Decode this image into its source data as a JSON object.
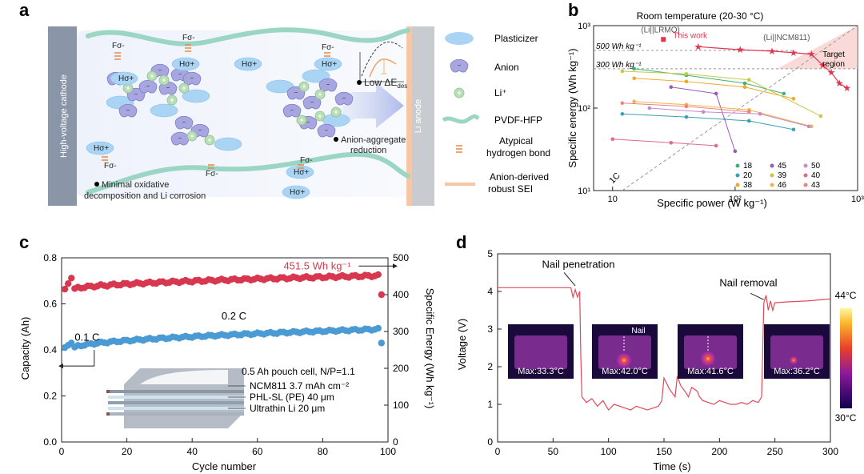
{
  "panels": {
    "a": {
      "letter": "a",
      "cathode_label": "High-voltage cathode",
      "anode_label": "Li anode",
      "annotations": {
        "minimal": "Minimal oxidative decomposition and Li corrosion",
        "anion_agg": "Anion-aggregate reduction",
        "low_e": "Low ΔE",
        "low_e_sub": "des"
      },
      "species_labels": {
        "h": "Hσ+",
        "f": "Fσ-"
      },
      "legend": [
        {
          "label": "Plasticizer",
          "icon": "ellipse-blue"
        },
        {
          "label": "Anion",
          "icon": "anion-purple"
        },
        {
          "label": "Li⁺",
          "icon": "li-green"
        },
        {
          "label": "PVDF-HFP",
          "icon": "wave-teal"
        },
        {
          "label": "Atypical hydrogen bond",
          "icon": "dash-orange"
        },
        {
          "label": "Anion-derived robust SEI",
          "icon": "line-orange"
        }
      ]
    },
    "b": {
      "letter": "b",
      "title": "Room temperature (20-30 °C)",
      "xlabel": "Specific power (W kg⁻¹)",
      "ylabel": "Specific energy  (Wh kg⁻¹)",
      "xticks": [
        "10",
        "10²",
        "10³"
      ],
      "yticks": [
        "10¹",
        "10²",
        "10³"
      ],
      "lines": {
        "e500": "500 Wh kg⁻¹",
        "e300": "300 Wh kg⁻¹",
        "rate": "1C"
      },
      "labels": {
        "lrmo": "(Li||LRMO)",
        "this_work": "This work",
        "ncm": "(Li||NCM811)",
        "target": "Target region"
      },
      "legend": [
        "18",
        "20",
        "38",
        "45",
        "39",
        "46",
        "50",
        "40",
        "43"
      ]
    },
    "c": {
      "letter": "c",
      "xlabel": "Cycle number",
      "ylabel_left": "Capacity (Ah)",
      "ylabel_right": "Specific Energy (Wh kg⁻¹)",
      "xticks": [
        "0",
        "20",
        "40",
        "60",
        "80",
        "100"
      ],
      "yticks_left": [
        "0.0",
        "0.2",
        "0.4",
        "0.6",
        "0.8"
      ],
      "yticks_right": [
        "0",
        "100",
        "200",
        "300",
        "400",
        "500"
      ],
      "annotations": {
        "energy": "451.5 Wh kg⁻¹",
        "rate01": "0.1 C",
        "rate02": "0.2 C",
        "cell": "0.5 Ah pouch cell, N/P=1.1",
        "ncm": "NCM811 3.7 mAh cm⁻²",
        "phl": "PHL-SL (PE) 40 μm",
        "li": "Ultrathin Li  20 μm"
      }
    },
    "d": {
      "letter": "d",
      "xlabel": "Time (s)",
      "ylabel": "Voltage (V)",
      "xticks": [
        "0",
        "50",
        "100",
        "150",
        "200",
        "250",
        "300"
      ],
      "yticks": [
        "0",
        "1",
        "2",
        "3",
        "4",
        "5"
      ],
      "annotations": {
        "pen": "Nail penetration",
        "rem": "Nail removal",
        "nail": "Nail"
      },
      "thermal": [
        "Max:33.3°C",
        "Max:42.0°C",
        "Max:41.6°C",
        "Max:36.2°C"
      ],
      "colorbar": {
        "max": "44°C",
        "min": "30°C"
      }
    }
  },
  "colors": {
    "red": "#d8384f",
    "blue": "#4a9ad4",
    "curve": "#e04a5a",
    "teal": "#9bd5c4"
  },
  "chart_data": [
    {
      "type": "scatter",
      "title": "Room temperature (20-30 °C)",
      "xlabel": "Specific power (W kg⁻¹)",
      "ylabel": "Specific energy  (Wh kg⁻¹)",
      "xscale": "log",
      "yscale": "log",
      "xlim": [
        7,
        1000
      ],
      "ylim": [
        10,
        1000
      ],
      "legend_position": "bottom-right",
      "series": [
        {
          "name": "This work",
          "color": "#e0354f",
          "x": [
            50,
            110,
            200,
            300,
            420,
            520,
            610,
            710,
            820
          ],
          "y": [
            555,
            510,
            490,
            470,
            450,
            330,
            270,
            200,
            175
          ]
        },
        {
          "name": "18",
          "color": "#3cb371",
          "x": [
            15,
            40,
            120,
            250
          ],
          "y": [
            300,
            250,
            200,
            150
          ]
        },
        {
          "name": "20",
          "color": "#3aa0b5",
          "x": [
            12,
            40,
            130,
            300
          ],
          "y": [
            85,
            78,
            70,
            55
          ]
        },
        {
          "name": "38",
          "color": "#f5a623",
          "x": [
            15,
            40,
            120,
            300
          ],
          "y": [
            230,
            210,
            180,
            130
          ]
        },
        {
          "name": "45",
          "color": "#9b59b6",
          "x": [
            30,
            70,
            100
          ],
          "y": [
            180,
            150,
            30
          ]
        },
        {
          "name": "39",
          "color": "#c8c848",
          "x": [
            12,
            40,
            130,
            500
          ],
          "y": [
            280,
            260,
            220,
            80
          ]
        },
        {
          "name": "46",
          "color": "#f2b24a",
          "x": [
            15,
            40,
            130,
            420
          ],
          "y": [
            120,
            110,
            95,
            60
          ]
        },
        {
          "name": "50",
          "color": "#c48ac9",
          "x": [
            20,
            55,
            160,
            400
          ],
          "y": [
            100,
            90,
            85,
            60
          ]
        },
        {
          "name": "40",
          "color": "#e06a8a",
          "x": [
            10,
            30,
            70
          ],
          "y": [
            42,
            38,
            35
          ]
        },
        {
          "name": "43",
          "color": "#f08080",
          "x": [
            12,
            40,
            130
          ],
          "y": [
            115,
            105,
            90
          ]
        }
      ],
      "points": {
        "lrmo": {
          "x": 26,
          "y": 680
        }
      }
    },
    {
      "type": "scatter",
      "xlabel": "Cycle number",
      "ylabel": "Capacity (Ah)",
      "y2label": "Specific Energy (Wh kg⁻¹)",
      "xlim": [
        0,
        100
      ],
      "ylim": [
        0,
        0.8
      ],
      "y2lim": [
        0,
        500
      ],
      "series": [
        {
          "name": "Specific energy",
          "axis": "right",
          "x_start": 1,
          "x_end": 98,
          "start": 415,
          "end": 451.5,
          "first": [
            415,
            430,
            445
          ],
          "last": 400
        },
        {
          "name": "Capacity",
          "axis": "left",
          "x_start": 1,
          "x_end": 98,
          "start": 0.41,
          "end": 0.49,
          "first": [
            0.41,
            0.42,
            0.43
          ],
          "last": 0.43
        }
      ]
    },
    {
      "type": "line",
      "xlabel": "Time (s)",
      "ylabel": "Voltage (V)",
      "xlim": [
        0,
        300
      ],
      "ylim": [
        0,
        5
      ],
      "series": [
        {
          "name": "Voltage",
          "x": [
            0,
            66,
            68,
            70,
            72,
            74,
            75,
            76,
            80,
            85,
            90,
            95,
            100,
            105,
            110,
            115,
            120,
            125,
            130,
            135,
            140,
            145,
            148,
            150,
            155,
            160,
            162,
            165,
            170,
            172,
            175,
            180,
            182,
            185,
            190,
            195,
            200,
            205,
            210,
            215,
            220,
            225,
            230,
            235,
            238,
            240,
            242,
            244,
            246,
            248,
            250,
            260,
            280,
            300
          ],
          "y": [
            4.1,
            4.1,
            3.85,
            4.05,
            3.85,
            4.0,
            2.3,
            1.2,
            1.05,
            1.15,
            0.95,
            1.1,
            0.85,
            1.0,
            0.95,
            0.9,
            0.85,
            0.95,
            0.9,
            0.85,
            0.9,
            0.95,
            1.1,
            1.7,
            1.4,
            1.2,
            1.75,
            1.5,
            1.3,
            1.2,
            1.45,
            1.35,
            1.2,
            1.1,
            1.05,
            1.0,
            1.1,
            1.05,
            1.0,
            1.0,
            1.05,
            1.0,
            1.1,
            1.05,
            1.2,
            3.7,
            3.9,
            3.5,
            3.75,
            3.5,
            3.7,
            3.72,
            3.75,
            3.8
          ]
        }
      ]
    }
  ]
}
